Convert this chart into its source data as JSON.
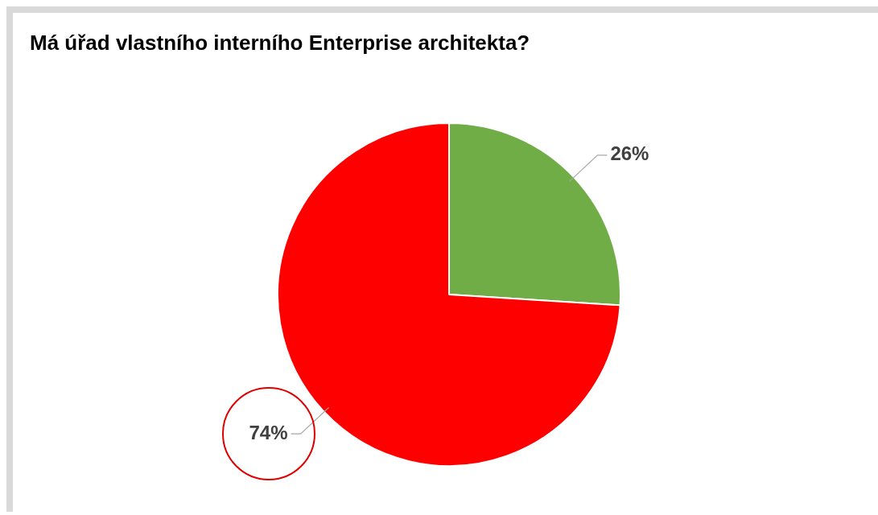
{
  "chart_data": {
    "type": "pie",
    "title": "Má úřad vlastního interního Enterprise architekta?",
    "categories": [
      null,
      null
    ],
    "values": [
      26,
      74
    ],
    "colors": [
      "#70ad47",
      "#ff0000"
    ],
    "value_labels": [
      "26%",
      "74%"
    ],
    "legend": false
  }
}
